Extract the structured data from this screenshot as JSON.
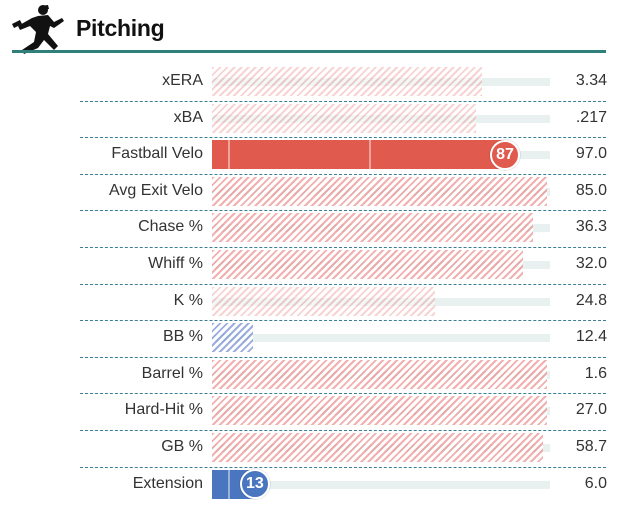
{
  "header": {
    "title": "Pitching"
  },
  "colors": {
    "accent_teal": "#2f7f7a",
    "red_solid": "#e05a4e",
    "blue_solid": "#4a76c0",
    "red_hatch": "#e86e6e",
    "blue_hatch": "#5a78c8"
  },
  "rows": [
    {
      "label": "xERA",
      "value": "3.34",
      "percentile": 80,
      "style": "hatch-red-light"
    },
    {
      "label": "xBA",
      "value": ".217",
      "percentile": 78,
      "style": "hatch-red-light"
    },
    {
      "label": "Fastball Velo",
      "value": "97.0",
      "percentile": 87,
      "style": "solid-red",
      "badge": "87"
    },
    {
      "label": "Avg Exit Velo",
      "value": "85.0",
      "percentile": 99,
      "style": "hatch-red"
    },
    {
      "label": "Chase %",
      "value": "36.3",
      "percentile": 95,
      "style": "hatch-red"
    },
    {
      "label": "Whiff %",
      "value": "32.0",
      "percentile": 92,
      "style": "hatch-red"
    },
    {
      "label": "K %",
      "value": "24.8",
      "percentile": 66,
      "style": "hatch-red-light"
    },
    {
      "label": "BB %",
      "value": "12.4",
      "percentile": 12,
      "style": "hatch-blue"
    },
    {
      "label": "Barrel %",
      "value": "1.6",
      "percentile": 99,
      "style": "hatch-red"
    },
    {
      "label": "Hard-Hit %",
      "value": "27.0",
      "percentile": 99,
      "style": "hatch-red"
    },
    {
      "label": "GB %",
      "value": "58.7",
      "percentile": 98,
      "style": "hatch-red"
    },
    {
      "label": "Extension",
      "value": "6.0",
      "percentile": 13,
      "style": "solid-blue",
      "badge": "13"
    }
  ]
}
